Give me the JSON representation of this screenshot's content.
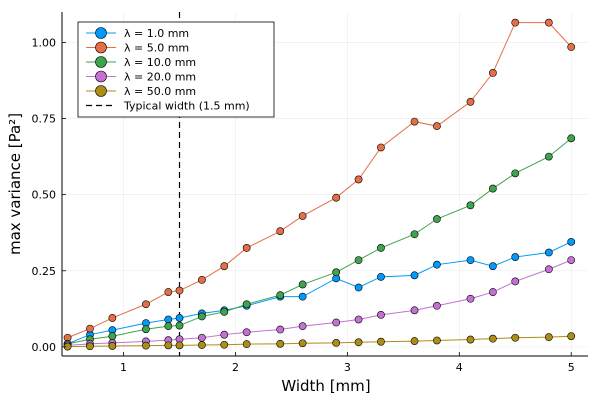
{
  "chart_data": {
    "type": "line",
    "title": "",
    "xlabel": "Width [mm]",
    "ylabel": "max variance [Pa²]",
    "xlim": [
      0.45,
      5.15
    ],
    "ylim": [
      -0.03,
      1.1
    ],
    "grid": true,
    "legend_position": "top-left",
    "xticks": [
      1,
      2,
      3,
      4,
      5
    ],
    "xtick_labels": [
      "1",
      "2",
      "3",
      "4",
      "5"
    ],
    "yticks": [
      0,
      0.25,
      0.5,
      0.75,
      1.0
    ],
    "ytick_labels": [
      "0.00",
      "0.25",
      "0.50",
      "0.75",
      "1.00"
    ],
    "x": [
      0.5,
      0.7,
      0.9,
      1.2,
      1.4,
      1.5,
      1.7,
      1.9,
      2.1,
      2.4,
      2.6,
      2.9,
      3.1,
      3.3,
      3.6,
      3.8,
      4.1,
      4.3,
      4.5,
      4.8,
      5.0
    ],
    "series": [
      {
        "name": "λ = 1.0 mm",
        "color": "#009AFA",
        "values": [
          0.01,
          0.04,
          0.055,
          0.078,
          0.09,
          0.095,
          0.11,
          0.12,
          0.135,
          0.165,
          0.165,
          0.225,
          0.195,
          0.23,
          0.235,
          0.27,
          0.285,
          0.265,
          0.295,
          0.31,
          0.345
        ]
      },
      {
        "name": "λ = 5.0 mm",
        "color": "#E36F47",
        "values": [
          0.03,
          0.06,
          0.095,
          0.14,
          0.18,
          0.185,
          0.22,
          0.265,
          0.325,
          0.38,
          0.43,
          0.49,
          0.55,
          0.655,
          0.74,
          0.725,
          0.805,
          0.9,
          1.065,
          1.065,
          0.985
        ]
      },
      {
        "name": "λ = 10.0 mm",
        "color": "#3EA44E",
        "values": [
          0.01,
          0.025,
          0.035,
          0.058,
          0.068,
          0.07,
          0.1,
          0.115,
          0.14,
          0.17,
          0.205,
          0.245,
          0.285,
          0.325,
          0.37,
          0.42,
          0.465,
          0.52,
          0.57,
          0.625,
          0.685
        ]
      },
      {
        "name": "λ = 20.0 mm",
        "color": "#C371D2",
        "values": [
          0.005,
          0.01,
          0.013,
          0.018,
          0.022,
          0.025,
          0.03,
          0.04,
          0.048,
          0.057,
          0.068,
          0.08,
          0.09,
          0.105,
          0.12,
          0.135,
          0.158,
          0.18,
          0.215,
          0.255,
          0.285
        ]
      },
      {
        "name": "λ = 50.0 mm",
        "color": "#AC8D18",
        "values": [
          0.001,
          0.002,
          0.003,
          0.004,
          0.005,
          0.005,
          0.006,
          0.007,
          0.009,
          0.01,
          0.012,
          0.013,
          0.015,
          0.017,
          0.019,
          0.021,
          0.024,
          0.027,
          0.03,
          0.032,
          0.035
        ]
      }
    ],
    "vline": {
      "name": "Typical width (1.5 mm)",
      "x": 1.5,
      "style": "dashed",
      "color": "#000000"
    }
  }
}
